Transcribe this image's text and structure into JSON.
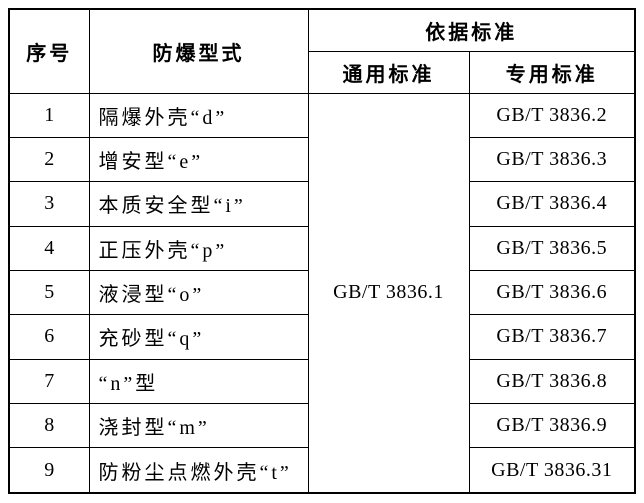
{
  "table": {
    "headers": {
      "seq": "序号",
      "type": "防爆型式",
      "basis": "依据标准",
      "general": "通用标准",
      "special": "专用标准"
    },
    "general_standard": "GB/T 3836.1",
    "rows": [
      {
        "seq": "1",
        "type": "隔爆外壳“d”",
        "special": "GB/T 3836.2"
      },
      {
        "seq": "2",
        "type": "增安型“e”",
        "special": "GB/T 3836.3"
      },
      {
        "seq": "3",
        "type": "本质安全型“i”",
        "special": "GB/T 3836.4"
      },
      {
        "seq": "4",
        "type": "正压外壳“p”",
        "special": "GB/T 3836.5"
      },
      {
        "seq": "5",
        "type": "液浸型“o”",
        "special": "GB/T 3836.6"
      },
      {
        "seq": "6",
        "type": "充砂型“q”",
        "special": "GB/T 3836.7"
      },
      {
        "seq": "7",
        "type": "“n”型",
        "special": "GB/T 3836.8"
      },
      {
        "seq": "8",
        "type": "浇封型“m”",
        "special": "GB/T 3836.9"
      },
      {
        "seq": "9",
        "type": "防粉尘点燃外壳“t”",
        "special": "GB/T 3836.31"
      }
    ]
  }
}
